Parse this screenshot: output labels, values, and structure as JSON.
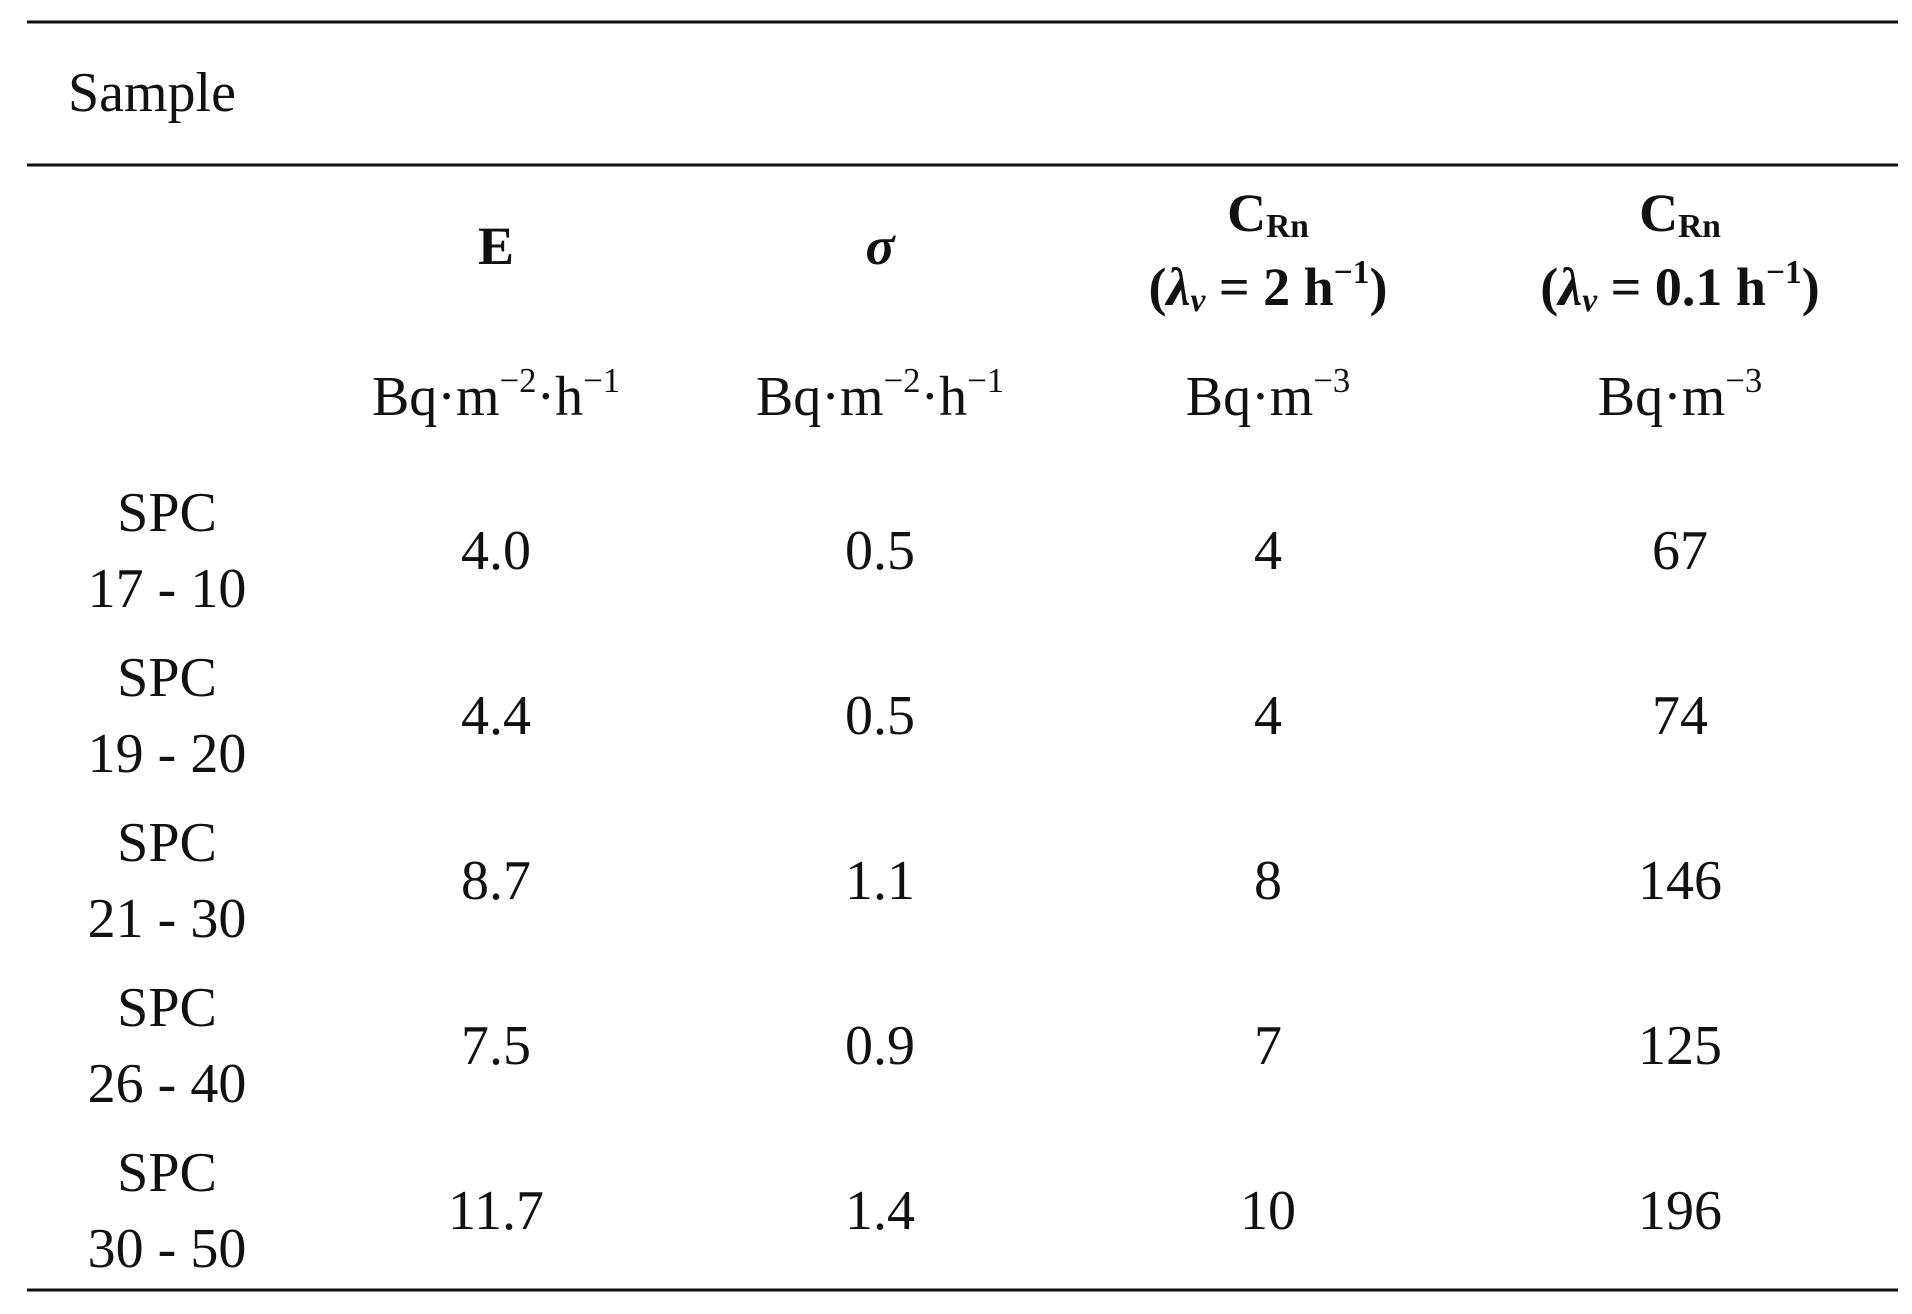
{
  "title": "Sample",
  "columns": [
    {
      "name": [
        [
          {
            "t": "E"
          }
        ]
      ],
      "units": [
        {
          "t": "Bq·m"
        },
        {
          "sup": "−2"
        },
        {
          "t": "·h"
        },
        {
          "sup": "−1"
        }
      ]
    },
    {
      "name": [
        [
          {
            "i": "σ"
          }
        ]
      ],
      "units": [
        {
          "t": "Bq·m"
        },
        {
          "sup": "−2"
        },
        {
          "t": "·h"
        },
        {
          "sup": "−1"
        }
      ]
    },
    {
      "name": [
        [
          {
            "t": "C"
          },
          {
            "sub": "Rn"
          }
        ],
        [
          {
            "t": "("
          },
          {
            "i": "λ"
          },
          {
            "isub": "v"
          },
          {
            "t": " = 2 h"
          },
          {
            "sup": "−1"
          },
          {
            "t": ")"
          }
        ]
      ],
      "units": [
        {
          "t": "Bq·m"
        },
        {
          "sup": "−3"
        }
      ]
    },
    {
      "name": [
        [
          {
            "t": "C"
          },
          {
            "sub": "Rn"
          }
        ],
        [
          {
            "t": "("
          },
          {
            "i": "λ"
          },
          {
            "isub": "v"
          },
          {
            "t": " = 0.1 h"
          },
          {
            "sup": "−1"
          },
          {
            "t": ")"
          }
        ]
      ],
      "units": [
        {
          "t": "Bq·m"
        },
        {
          "sup": "−3"
        }
      ]
    }
  ],
  "rows": [
    {
      "sample": [
        "SPC",
        "17 - 10"
      ],
      "cells": [
        "4.0",
        "0.5",
        "4",
        "67"
      ]
    },
    {
      "sample": [
        "SPC",
        "19 - 20"
      ],
      "cells": [
        "4.4",
        "0.5",
        "4",
        "74"
      ]
    },
    {
      "sample": [
        "SPC",
        "21 - 30"
      ],
      "cells": [
        "8.7",
        "1.1",
        "8",
        "146"
      ]
    },
    {
      "sample": [
        "SPC",
        "26 - 40"
      ],
      "cells": [
        "7.5",
        "0.9",
        "7",
        "125"
      ]
    },
    {
      "sample": [
        "SPC",
        "30 - 50"
      ],
      "cells": [
        "11.7",
        "1.4",
        "10",
        "196"
      ]
    }
  ]
}
